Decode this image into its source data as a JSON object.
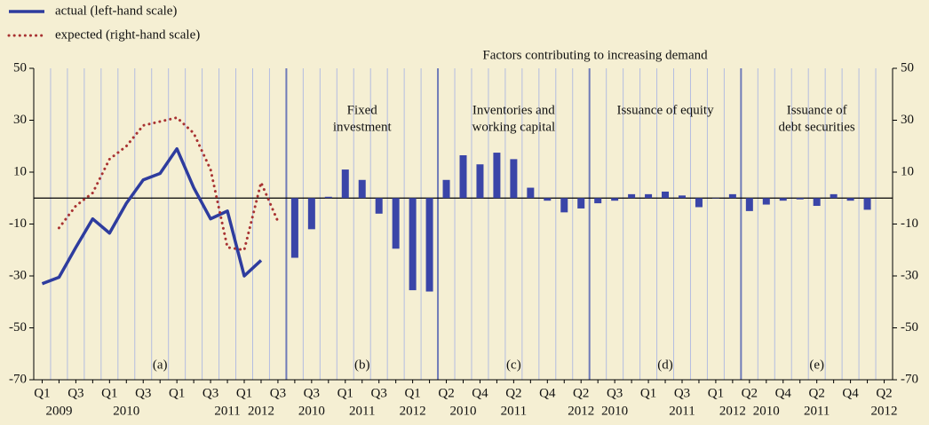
{
  "chart_data": {
    "type": "panels",
    "title": "Factors contributing to increasing demand",
    "ylim": [
      -70,
      50
    ],
    "yticks": [
      -70,
      -50,
      -30,
      -10,
      10,
      30,
      50
    ],
    "y2lim": [
      -70,
      50
    ],
    "y2ticks": [
      -70,
      -50,
      -30,
      -10,
      10,
      30,
      50
    ],
    "legend": "top-left",
    "panels": [
      {
        "type": "line",
        "label": "(a)",
        "categories": [
          "Q1",
          null,
          "Q3",
          null,
          "Q1",
          null,
          "Q3",
          null,
          "Q1",
          null,
          "Q3",
          null,
          "Q1",
          null,
          "Q3"
        ],
        "years": [
          null,
          "2009",
          null,
          null,
          null,
          "2010",
          null,
          null,
          null,
          null,
          null,
          "2011",
          null,
          "2012",
          null
        ],
        "series": [
          {
            "name": "actual (left-hand scale)",
            "color": "#2e3c9e",
            "style": "solid",
            "axis": "y",
            "values": [
              -33,
              -30.5,
              -19,
              -8,
              -13.5,
              -2,
              7,
              9.5,
              19,
              4,
              -8,
              -5,
              -30,
              -24,
              null
            ]
          },
          {
            "name": "expected (right-hand scale)",
            "color": "#a83232",
            "style": "dotted",
            "axis": "y2",
            "values": [
              null,
              -11.5,
              -3,
              2,
              15,
              20,
              28,
              29.5,
              31,
              25,
              11,
              -19,
              -20,
              6,
              -9
            ]
          }
        ]
      },
      {
        "type": "bar",
        "label": "(b)",
        "title": [
          "Fixed",
          "investment"
        ],
        "color": "#3a45a8",
        "categories": [
          null,
          "Q3",
          null,
          "Q1",
          null,
          "Q3",
          null,
          "Q1",
          null
        ],
        "years": [
          null,
          "2010",
          null,
          null,
          "2011",
          null,
          null,
          "2012",
          null
        ],
        "values": [
          -23,
          -12,
          0.5,
          11,
          7,
          -6,
          -19.5,
          -35.5,
          -36
        ]
      },
      {
        "type": "bar",
        "label": "(c)",
        "title": [
          "Inventories and",
          "working capital"
        ],
        "color": "#3a45a8",
        "categories": [
          "Q2",
          null,
          "Q4",
          null,
          "Q2",
          null,
          "Q4",
          null,
          "Q2"
        ],
        "years": [
          null,
          "2010",
          null,
          null,
          "2011",
          null,
          null,
          null,
          "2012"
        ],
        "values": [
          7,
          16.5,
          13,
          17.5,
          15,
          4,
          -1,
          -5.5,
          -4
        ]
      },
      {
        "type": "bar",
        "label": "(d)",
        "title": [
          "Issuance of equity"
        ],
        "color": "#3a45a8",
        "categories": [
          null,
          "Q3",
          null,
          "Q1",
          null,
          "Q3",
          null,
          "Q1",
          null
        ],
        "years": [
          null,
          "2010",
          null,
          null,
          null,
          "2011",
          null,
          null,
          "2012"
        ],
        "values": [
          -2,
          -1,
          1.5,
          1.5,
          2.5,
          1,
          -3.5,
          0,
          1.5
        ]
      },
      {
        "type": "bar",
        "label": "(e)",
        "title": [
          "Issuance of",
          "debt securities"
        ],
        "color": "#3a45a8",
        "categories": [
          "Q2",
          null,
          "Q4",
          null,
          "Q2",
          null,
          "Q4",
          null,
          "Q2"
        ],
        "years": [
          null,
          "2010",
          null,
          null,
          "2011",
          null,
          null,
          null,
          "2012"
        ],
        "values": [
          -5,
          -2.5,
          -1,
          -0.5,
          -3,
          1.5,
          -1,
          -4.5,
          null
        ]
      }
    ]
  }
}
